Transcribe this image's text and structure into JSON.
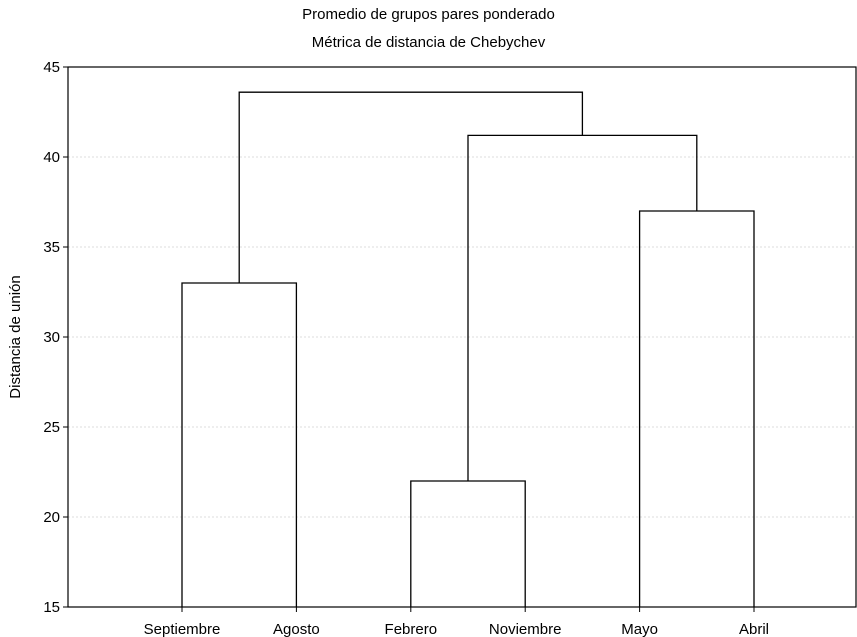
{
  "chart_data": {
    "type": "dendrogram",
    "title": "Promedio de grupos pares ponderado",
    "subtitle": "Métrica de distancia de Chebychev",
    "ylabel": "Distancia de unión",
    "xlabel": "",
    "ylim": [
      15,
      45
    ],
    "yticks": [
      15,
      20,
      25,
      30,
      35,
      40,
      45
    ],
    "grid": true,
    "leaves": [
      "Septiembre",
      "Agosto",
      "Febrero",
      "Noviembre",
      "Mayo",
      "Abril"
    ],
    "merges": [
      {
        "left": "Septiembre",
        "right": "Agosto",
        "height": 33
      },
      {
        "left": "Febrero",
        "right": "Noviembre",
        "height": 22
      },
      {
        "left": "Mayo",
        "right": "Abril",
        "height": 37
      },
      {
        "left": "Febrero+Noviembre",
        "right": "Mayo+Abril",
        "height": 41.2
      },
      {
        "left": "Septiembre+Agosto",
        "right": "Febrero+Noviembre+Mayo+Abril",
        "height": 43.6
      }
    ]
  }
}
